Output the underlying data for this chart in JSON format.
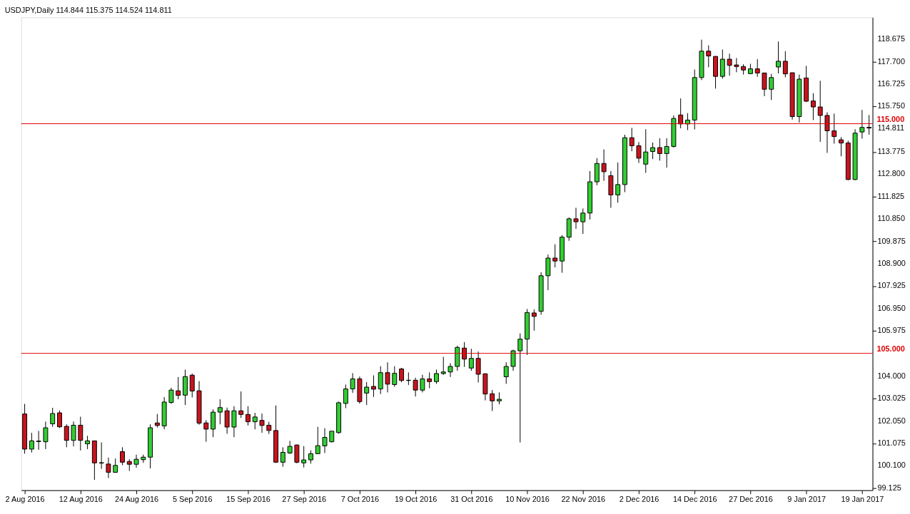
{
  "chart_data": {
    "type": "candlestick",
    "title": "USDJPY,Daily  114.844 115.375 114.524 114.811",
    "categories": [
      "2 Aug 2016",
      null,
      null,
      null,
      null,
      null,
      null,
      null,
      "12 Aug 2016",
      null,
      null,
      null,
      null,
      null,
      null,
      null,
      "24 Aug 2016",
      null,
      null,
      null,
      null,
      null,
      null,
      null,
      "5 Sep 2016",
      null,
      null,
      null,
      null,
      null,
      null,
      null,
      "15 Sep 2016",
      null,
      null,
      null,
      null,
      null,
      null,
      null,
      "27 Sep 2016",
      null,
      null,
      null,
      null,
      null,
      null,
      null,
      "7 Oct 2016",
      null,
      null,
      null,
      null,
      null,
      null,
      null,
      "19 Oct 2016",
      null,
      null,
      null,
      null,
      null,
      null,
      null,
      "31 Oct 2016",
      null,
      null,
      null,
      null,
      null,
      null,
      null,
      "10 Nov 2016",
      null,
      null,
      null,
      null,
      null,
      null,
      null,
      "22 Nov 2016",
      null,
      null,
      null,
      null,
      null,
      null,
      null,
      "2 Dec 2016",
      null,
      null,
      null,
      null,
      null,
      null,
      null,
      "14 Dec 2016",
      null,
      null,
      null,
      null,
      null,
      null,
      null,
      "27 Dec 2016",
      null,
      null,
      null,
      null,
      null,
      null,
      null,
      "9 Jan 2017",
      null,
      null,
      null,
      null,
      null,
      null,
      null,
      "19 Jan 2017",
      null
    ],
    "ohlc": [
      [
        102.36,
        102.8,
        100.63,
        100.83
      ],
      [
        100.83,
        101.54,
        100.68,
        101.19
      ],
      [
        101.16,
        101.62,
        100.8,
        101.18
      ],
      [
        101.15,
        102.03,
        100.83,
        101.76
      ],
      [
        101.93,
        102.63,
        101.8,
        102.38
      ],
      [
        102.41,
        102.51,
        101.75,
        101.8
      ],
      [
        101.82,
        101.91,
        100.91,
        101.21
      ],
      [
        101.21,
        102.03,
        100.95,
        101.87
      ],
      [
        101.87,
        102.24,
        100.77,
        101.21
      ],
      [
        101.06,
        101.41,
        100.83,
        101.19
      ],
      [
        101.19,
        101.19,
        99.49,
        100.23
      ],
      [
        100.24,
        101.12,
        99.97,
        100.22
      ],
      [
        100.18,
        100.46,
        99.57,
        99.82
      ],
      [
        99.82,
        100.42,
        99.8,
        100.12
      ],
      [
        100.72,
        100.91,
        100.13,
        100.26
      ],
      [
        100.29,
        100.39,
        99.88,
        100.17
      ],
      [
        100.17,
        100.59,
        100.02,
        100.39
      ],
      [
        100.37,
        100.59,
        100.23,
        100.48
      ],
      [
        100.48,
        101.91,
        99.99,
        101.76
      ],
      [
        101.97,
        102.36,
        101.77,
        101.86
      ],
      [
        101.84,
        103.1,
        101.69,
        102.88
      ],
      [
        102.86,
        103.5,
        102.8,
        103.4
      ],
      [
        103.37,
        103.97,
        103.0,
        103.17
      ],
      [
        103.18,
        104.29,
        102.75,
        103.99
      ],
      [
        104.05,
        104.12,
        103.08,
        103.36
      ],
      [
        103.37,
        103.79,
        101.89,
        101.96
      ],
      [
        101.97,
        102.09,
        101.15,
        101.7
      ],
      [
        101.7,
        102.56,
        101.35,
        102.44
      ],
      [
        102.44,
        103.0,
        101.91,
        102.64
      ],
      [
        102.5,
        102.64,
        101.5,
        101.79
      ],
      [
        101.79,
        102.7,
        101.35,
        102.5
      ],
      [
        102.5,
        103.34,
        102.19,
        102.34
      ],
      [
        102.34,
        102.7,
        101.86,
        102.02
      ],
      [
        102.02,
        102.41,
        101.69,
        102.23
      ],
      [
        102.08,
        102.38,
        101.54,
        101.86
      ],
      [
        101.87,
        102.02,
        101.49,
        101.64
      ],
      [
        101.64,
        102.73,
        100.23,
        100.26
      ],
      [
        100.26,
        100.91,
        100.06,
        100.69
      ],
      [
        100.66,
        101.19,
        100.62,
        100.95
      ],
      [
        101.01,
        101.03,
        100.21,
        100.26
      ],
      [
        100.23,
        100.96,
        100.03,
        100.36
      ],
      [
        100.36,
        100.78,
        100.2,
        100.63
      ],
      [
        100.63,
        101.8,
        100.61,
        100.98
      ],
      [
        100.97,
        101.74,
        100.66,
        101.34
      ],
      [
        101.15,
        101.61,
        101.12,
        101.61
      ],
      [
        101.55,
        102.9,
        101.5,
        102.85
      ],
      [
        102.82,
        103.64,
        102.61,
        103.45
      ],
      [
        103.45,
        104.14,
        103.28,
        103.89
      ],
      [
        103.89,
        103.99,
        102.81,
        102.9
      ],
      [
        103.27,
        103.75,
        102.75,
        103.53
      ],
      [
        103.56,
        104.04,
        103.1,
        103.44
      ],
      [
        103.45,
        104.44,
        103.23,
        104.16
      ],
      [
        104.16,
        104.61,
        103.3,
        103.66
      ],
      [
        103.64,
        104.44,
        103.54,
        104.13
      ],
      [
        104.32,
        104.37,
        103.74,
        103.82
      ],
      [
        103.83,
        104.17,
        103.62,
        103.82
      ],
      [
        103.83,
        103.94,
        103.12,
        103.4
      ],
      [
        103.4,
        104.07,
        103.3,
        103.89
      ],
      [
        103.89,
        104.17,
        103.48,
        103.77
      ],
      [
        103.77,
        104.29,
        103.67,
        104.12
      ],
      [
        104.12,
        104.85,
        104.06,
        104.19
      ],
      [
        104.19,
        104.57,
        103.97,
        104.43
      ],
      [
        104.43,
        105.33,
        104.24,
        105.26
      ],
      [
        105.23,
        105.49,
        104.41,
        104.75
      ],
      [
        104.36,
        105.2,
        104.24,
        104.78
      ],
      [
        104.78,
        105.08,
        103.73,
        104.09
      ],
      [
        104.11,
        104.13,
        102.95,
        103.23
      ],
      [
        103.24,
        103.4,
        102.49,
        102.93
      ],
      [
        102.93,
        103.3,
        102.78,
        103.0
      ],
      [
        103.98,
        104.61,
        103.67,
        104.43
      ],
      [
        104.43,
        105.16,
        104.24,
        105.11
      ],
      [
        105.11,
        105.87,
        101.12,
        105.62
      ],
      [
        105.62,
        106.93,
        104.93,
        106.78
      ],
      [
        106.76,
        106.91,
        105.99,
        106.61
      ],
      [
        106.83,
        108.53,
        106.68,
        108.38
      ],
      [
        108.38,
        109.3,
        107.75,
        109.15
      ],
      [
        109.15,
        109.75,
        108.74,
        109.02
      ],
      [
        109.02,
        110.15,
        108.51,
        110.06
      ],
      [
        110.06,
        110.92,
        109.9,
        110.86
      ],
      [
        110.86,
        111.34,
        110.42,
        110.73
      ],
      [
        110.73,
        111.31,
        110.2,
        111.11
      ],
      [
        111.11,
        112.94,
        110.83,
        112.47
      ],
      [
        112.47,
        113.5,
        112.32,
        113.27
      ],
      [
        113.27,
        113.88,
        112.51,
        112.91
      ],
      [
        112.74,
        112.94,
        111.34,
        111.9
      ],
      [
        111.9,
        113.31,
        111.56,
        112.35
      ],
      [
        112.35,
        114.52,
        112.02,
        114.39
      ],
      [
        114.39,
        114.82,
        113.8,
        114.04
      ],
      [
        114.04,
        114.2,
        113.29,
        113.5
      ],
      [
        113.24,
        114.76,
        112.86,
        113.77
      ],
      [
        113.79,
        114.18,
        113.46,
        113.96
      ],
      [
        113.96,
        114.37,
        113.39,
        113.7
      ],
      [
        113.7,
        114.37,
        113.09,
        114.01
      ],
      [
        114.01,
        115.36,
        113.96,
        115.23
      ],
      [
        115.38,
        116.1,
        114.8,
        114.99
      ],
      [
        114.99,
        115.46,
        114.72,
        115.16
      ],
      [
        115.16,
        117.36,
        114.75,
        117.01
      ],
      [
        117.01,
        118.66,
        116.9,
        118.16
      ],
      [
        118.16,
        118.41,
        117.46,
        117.95
      ],
      [
        117.93,
        117.95,
        116.53,
        117.06
      ],
      [
        117.06,
        118.23,
        116.96,
        117.81
      ],
      [
        117.81,
        118.05,
        117.09,
        117.54
      ],
      [
        117.56,
        117.86,
        117.24,
        117.49
      ],
      [
        117.49,
        117.59,
        117.14,
        117.34
      ],
      [
        117.18,
        117.61,
        117.16,
        117.39
      ],
      [
        117.39,
        117.81,
        117.04,
        117.21
      ],
      [
        117.21,
        117.21,
        116.2,
        116.5
      ],
      [
        116.5,
        117.17,
        116.03,
        117.01
      ],
      [
        117.47,
        118.58,
        117.19,
        117.72
      ],
      [
        117.72,
        118.16,
        117.02,
        117.17
      ],
      [
        117.22,
        117.22,
        115.18,
        115.31
      ],
      [
        115.31,
        117.14,
        115.05,
        116.94
      ],
      [
        116.99,
        117.52,
        115.94,
        115.98
      ],
      [
        115.99,
        116.33,
        115.16,
        115.73
      ],
      [
        115.73,
        116.87,
        114.21,
        115.36
      ],
      [
        115.36,
        115.5,
        113.73,
        114.69
      ],
      [
        114.69,
        115.44,
        114.13,
        114.44
      ],
      [
        114.3,
        114.42,
        113.58,
        114.16
      ],
      [
        114.16,
        114.26,
        112.54,
        112.57
      ],
      [
        112.57,
        114.76,
        112.54,
        114.59
      ],
      [
        114.64,
        115.6,
        114.35,
        114.84
      ],
      [
        114.844,
        115.375,
        114.524,
        114.811
      ]
    ],
    "colors": [
      "#c8141e",
      "#32cd32",
      "#32cd32",
      "#32cd32",
      "#32cd32",
      "#c8141e",
      "#c8141e",
      "#32cd32",
      "#c8141e",
      "#32cd32",
      "#c8141e",
      "#c8141e",
      "#c8141e",
      "#32cd32",
      "#c8141e",
      "#c8141e",
      "#32cd32",
      "#32cd32",
      "#32cd32",
      "#c8141e",
      "#32cd32",
      "#32cd32",
      "#c8141e",
      "#32cd32",
      "#c8141e",
      "#c8141e",
      "#c8141e",
      "#32cd32",
      "#32cd32",
      "#c8141e",
      "#32cd32",
      "#c8141e",
      "#c8141e",
      "#32cd32",
      "#c8141e",
      "#c8141e",
      "#c8141e",
      "#32cd32",
      "#32cd32",
      "#c8141e",
      "#32cd32",
      "#32cd32",
      "#32cd32",
      "#32cd32",
      "#32cd32",
      "#32cd32",
      "#32cd32",
      "#32cd32",
      "#c8141e",
      "#32cd32",
      "#c8141e",
      "#32cd32",
      "#c8141e",
      "#32cd32",
      "#c8141e",
      "#c8141e",
      "#c8141e",
      "#32cd32",
      "#c8141e",
      "#32cd32",
      "#32cd32",
      "#32cd32",
      "#32cd32",
      "#c8141e",
      "#32cd32",
      "#c8141e",
      "#c8141e",
      "#c8141e",
      "#32cd32",
      "#32cd32",
      "#32cd32",
      "#32cd32",
      "#32cd32",
      "#c8141e",
      "#32cd32",
      "#32cd32",
      "#c8141e",
      "#32cd32",
      "#32cd32",
      "#c8141e",
      "#32cd32",
      "#32cd32",
      "#32cd32",
      "#c8141e",
      "#c8141e",
      "#32cd32",
      "#32cd32",
      "#c8141e",
      "#c8141e",
      "#32cd32",
      "#32cd32",
      "#c8141e",
      "#32cd32",
      "#32cd32",
      "#c8141e",
      "#32cd32",
      "#32cd32",
      "#32cd32",
      "#c8141e",
      "#c8141e",
      "#32cd32",
      "#c8141e",
      "#c8141e",
      "#c8141e",
      "#32cd32",
      "#c8141e",
      "#c8141e",
      "#32cd32",
      "#32cd32",
      "#c8141e",
      "#c8141e",
      "#32cd32",
      "#c8141e",
      "#c8141e",
      "#c8141e",
      "#c8141e",
      "#c8141e",
      "#c8141e",
      "#c8141e",
      "#32cd32",
      "#32cd32",
      "#c8141e"
    ],
    "ylim": [
      99.04,
      119.63
    ],
    "yticks": [
      99.125,
      {
        "value": 100.1,
        "label": "100.100"
      },
      101.075,
      {
        "value": 102.05,
        "label": "102.050"
      },
      103.025,
      {
        "value": 104.0,
        "label": "104.000"
      },
      105.975,
      {
        "value": 106.95,
        "label": "106.950"
      },
      107.925,
      {
        "value": 108.9,
        "label": "108.900"
      },
      109.875,
      {
        "value": 110.85,
        "label": "110.850"
      },
      111.825,
      {
        "value": 112.8,
        "label": "112.800"
      },
      113.775,
      {
        "value": 114.811,
        "label": "114.811"
      },
      {
        "value": 115.75,
        "label": "115.750"
      },
      116.725,
      {
        "value": 117.7,
        "label": "117.700"
      },
      118.675
    ],
    "ref_lines": [
      {
        "axis": "y",
        "value": 115.0,
        "label": "115.000",
        "color": "#e00000"
      },
      {
        "axis": "y",
        "value": 105.0,
        "label": "105.000",
        "color": "#e00000"
      }
    ]
  }
}
